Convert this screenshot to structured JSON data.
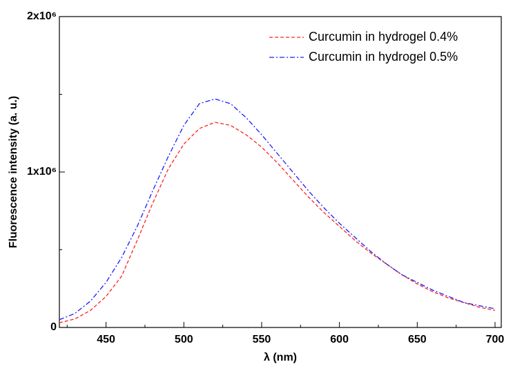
{
  "chart_data": {
    "type": "line",
    "xlabel": "λ (nm)",
    "ylabel": "Fluorescence intensity (a. u.)",
    "x": [
      420,
      430,
      440,
      450,
      460,
      470,
      480,
      490,
      500,
      510,
      520,
      530,
      540,
      550,
      560,
      570,
      580,
      590,
      600,
      610,
      620,
      630,
      640,
      650,
      660,
      670,
      680,
      690,
      700
    ],
    "series": [
      {
        "name": "Curcumin in hydrogel 0.4%",
        "color": "#ff2020",
        "dash": "dashed",
        "values": [
          30000,
          55000,
          110000,
          200000,
          330000,
          560000,
          800000,
          1020000,
          1180000,
          1280000,
          1320000,
          1300000,
          1240000,
          1160000,
          1060000,
          950000,
          840000,
          740000,
          650000,
          560000,
          480000,
          410000,
          340000,
          280000,
          230000,
          190000,
          160000,
          130000,
          110000
        ]
      },
      {
        "name": "Curcumin in hydrogel 0.5%",
        "color": "#1a1aff",
        "dash": "dashdot",
        "values": [
          50000,
          90000,
          170000,
          290000,
          450000,
          650000,
          880000,
          1100000,
          1300000,
          1440000,
          1470000,
          1440000,
          1350000,
          1240000,
          1120000,
          1000000,
          880000,
          770000,
          670000,
          580000,
          490000,
          410000,
          340000,
          290000,
          240000,
          200000,
          160000,
          140000,
          120000
        ]
      }
    ],
    "xlim": [
      420,
      704
    ],
    "ylim": [
      0,
      2000000
    ],
    "xticks": [
      450,
      500,
      550,
      600,
      650,
      700
    ],
    "yticks": [
      0,
      {
        "value": 1000000,
        "label": "1x10⁶"
      },
      {
        "value": 2000000,
        "label": "2x10⁶"
      }
    ],
    "yminor_ticks": [
      500000,
      1500000
    ],
    "xminor_ticks": [
      425,
      475,
      525,
      575,
      625,
      675
    ],
    "legend": "upper right",
    "grid": false
  }
}
